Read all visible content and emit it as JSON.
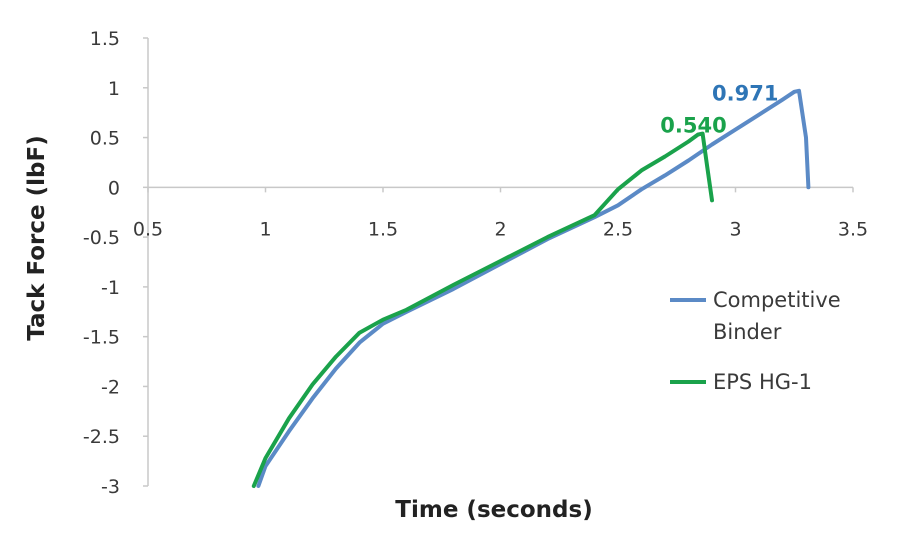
{
  "chart_data": {
    "type": "line",
    "title": "",
    "xlabel": "Time (seconds)",
    "ylabel": "Tack Force (lbF)",
    "xlim": [
      0.5,
      3.5
    ],
    "ylim": [
      -3,
      1.5
    ],
    "x_ticks": [
      "0.5",
      "1",
      "1.5",
      "2",
      "2.5",
      "3",
      "3.5"
    ],
    "y_ticks": [
      "1.5",
      "1",
      "0.5",
      "0",
      "-0.5",
      "-1",
      "-1.5",
      "-2",
      "-2.5",
      "-3"
    ],
    "grid": false,
    "legend_position": "right",
    "series": [
      {
        "name": "Competitive Binder",
        "color": "#5b8ac6",
        "x": [
          0.97,
          1.0,
          1.1,
          1.2,
          1.3,
          1.4,
          1.5,
          1.6,
          1.8,
          2.0,
          2.2,
          2.4,
          2.5,
          2.6,
          2.7,
          2.8,
          2.9,
          3.0,
          3.1,
          3.2,
          3.25,
          3.27,
          3.3,
          3.31
        ],
        "y": [
          -3.0,
          -2.8,
          -2.45,
          -2.12,
          -1.82,
          -1.56,
          -1.37,
          -1.25,
          -1.02,
          -0.77,
          -0.52,
          -0.3,
          -0.18,
          -0.02,
          0.12,
          0.27,
          0.43,
          0.58,
          0.73,
          0.88,
          0.96,
          0.97,
          0.5,
          0.0
        ]
      },
      {
        "name": "EPS HG-1",
        "color": "#1aa24b",
        "x": [
          0.95,
          1.0,
          1.1,
          1.2,
          1.3,
          1.4,
          1.5,
          1.6,
          1.8,
          2.0,
          2.2,
          2.4,
          2.5,
          2.6,
          2.7,
          2.8,
          2.84,
          2.86,
          2.88,
          2.9
        ],
        "y": [
          -3.0,
          -2.72,
          -2.32,
          -1.98,
          -1.7,
          -1.46,
          -1.33,
          -1.23,
          -0.98,
          -0.74,
          -0.5,
          -0.28,
          -0.02,
          0.17,
          0.31,
          0.46,
          0.53,
          0.54,
          0.2,
          -0.13
        ]
      }
    ],
    "annotations": [
      {
        "text": "0.971",
        "color": "#2e75b6",
        "x": 2.9,
        "y": 0.87
      },
      {
        "text": "0.540",
        "color": "#1aa24b",
        "x": 2.68,
        "y": 0.55
      }
    ]
  }
}
